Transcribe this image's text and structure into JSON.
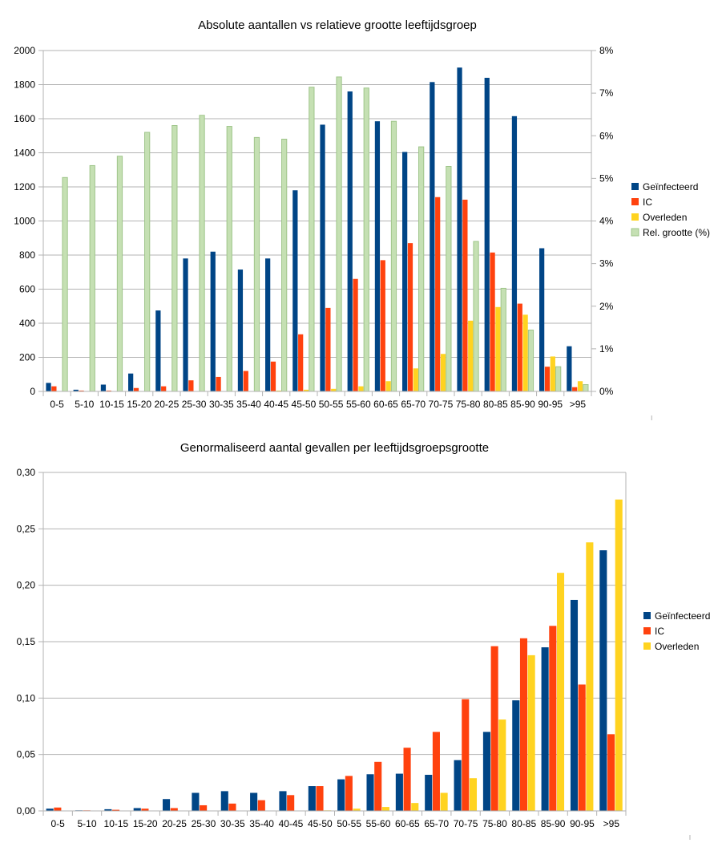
{
  "chart_data": [
    {
      "type": "bar",
      "title": "Absolute aantallen vs relatieve grootte leeftijdsgroep",
      "categories": [
        "0-5",
        "5-10",
        "10-15",
        "15-20",
        "20-25",
        "25-30",
        "30-35",
        "35-40",
        "40-45",
        "45-50",
        "50-55",
        "55-60",
        "60-65",
        "65-70",
        "70-75",
        "75-80",
        "80-85",
        "85-90",
        "90-95",
        ">95"
      ],
      "ylim": [
        0,
        2000
      ],
      "yticks": [
        "0",
        "200",
        "400",
        "600",
        "800",
        "1000",
        "1200",
        "1400",
        "1600",
        "1800",
        "2000"
      ],
      "y2lim": [
        0,
        8
      ],
      "y2ticks": [
        "0%",
        "1%",
        "2%",
        "3%",
        "4%",
        "5%",
        "6%",
        "7%",
        "8%"
      ],
      "grid": true,
      "legend_position": "right",
      "series": [
        {
          "name": "Geïnfecteerd",
          "color": "#004586",
          "axis": "left",
          "values": [
            50,
            10,
            40,
            105,
            475,
            780,
            820,
            715,
            780,
            1180,
            1565,
            1760,
            1585,
            1405,
            1815,
            1900,
            1840,
            1615,
            840,
            265
          ]
        },
        {
          "name": "IC",
          "color": "#ff420e",
          "axis": "left",
          "values": [
            30,
            5,
            5,
            20,
            30,
            65,
            85,
            120,
            175,
            335,
            490,
            660,
            770,
            870,
            1140,
            1125,
            815,
            515,
            145,
            25
          ]
        },
        {
          "name": "Overleden",
          "color": "#ffd320",
          "axis": "left",
          "values": [
            0,
            0,
            0,
            0,
            0,
            0,
            0,
            0,
            5,
            10,
            15,
            30,
            60,
            135,
            220,
            415,
            495,
            450,
            205,
            60
          ]
        },
        {
          "name": "Rel. grootte (%)",
          "color": "#c5e0b3",
          "border": "#9fc58a",
          "axis": "right",
          "values": [
            5.02,
            5.3,
            5.52,
            6.08,
            6.24,
            6.48,
            6.22,
            5.96,
            5.92,
            7.14,
            7.38,
            7.12,
            6.34,
            5.74,
            5.28,
            3.52,
            2.42,
            1.44,
            0.58,
            0.16
          ]
        }
      ]
    },
    {
      "type": "bar",
      "title": "Genormaliseerd aantal gevallen per leeftijdsgroepsgrootte",
      "categories": [
        "0-5",
        "5-10",
        "10-15",
        "15-20",
        "20-25",
        "25-30",
        "30-35",
        "35-40",
        "40-45",
        "45-50",
        "50-55",
        "55-60",
        "60-65",
        "65-70",
        "70-75",
        "75-80",
        "80-85",
        "85-90",
        "90-95",
        ">95"
      ],
      "ylim": [
        0,
        0.3
      ],
      "yticks": [
        "0,00",
        "0,05",
        "0,10",
        "0,15",
        "0,20",
        "0,25",
        "0,30"
      ],
      "grid": true,
      "legend_position": "right",
      "series": [
        {
          "name": "Geïnfecteerd",
          "color": "#004586",
          "values": [
            0.002,
            0.0005,
            0.0015,
            0.0025,
            0.0105,
            0.016,
            0.0175,
            0.016,
            0.0175,
            0.022,
            0.028,
            0.0325,
            0.033,
            0.032,
            0.045,
            0.07,
            0.098,
            0.145,
            0.187,
            0.231
          ]
        },
        {
          "name": "IC",
          "color": "#ff420e",
          "values": [
            0.003,
            0.0005,
            0.001,
            0.002,
            0.0025,
            0.005,
            0.0065,
            0.0095,
            0.014,
            0.022,
            0.031,
            0.0435,
            0.056,
            0.07,
            0.099,
            0.146,
            0.153,
            0.164,
            0.112,
            0.068
          ]
        },
        {
          "name": "Overleden",
          "color": "#ffd320",
          "values": [
            0,
            0,
            0,
            0,
            0,
            0,
            0,
            0,
            0,
            0.0005,
            0.002,
            0.0035,
            0.007,
            0.016,
            0.029,
            0.081,
            0.138,
            0.211,
            0.238,
            0.276
          ]
        }
      ]
    }
  ]
}
